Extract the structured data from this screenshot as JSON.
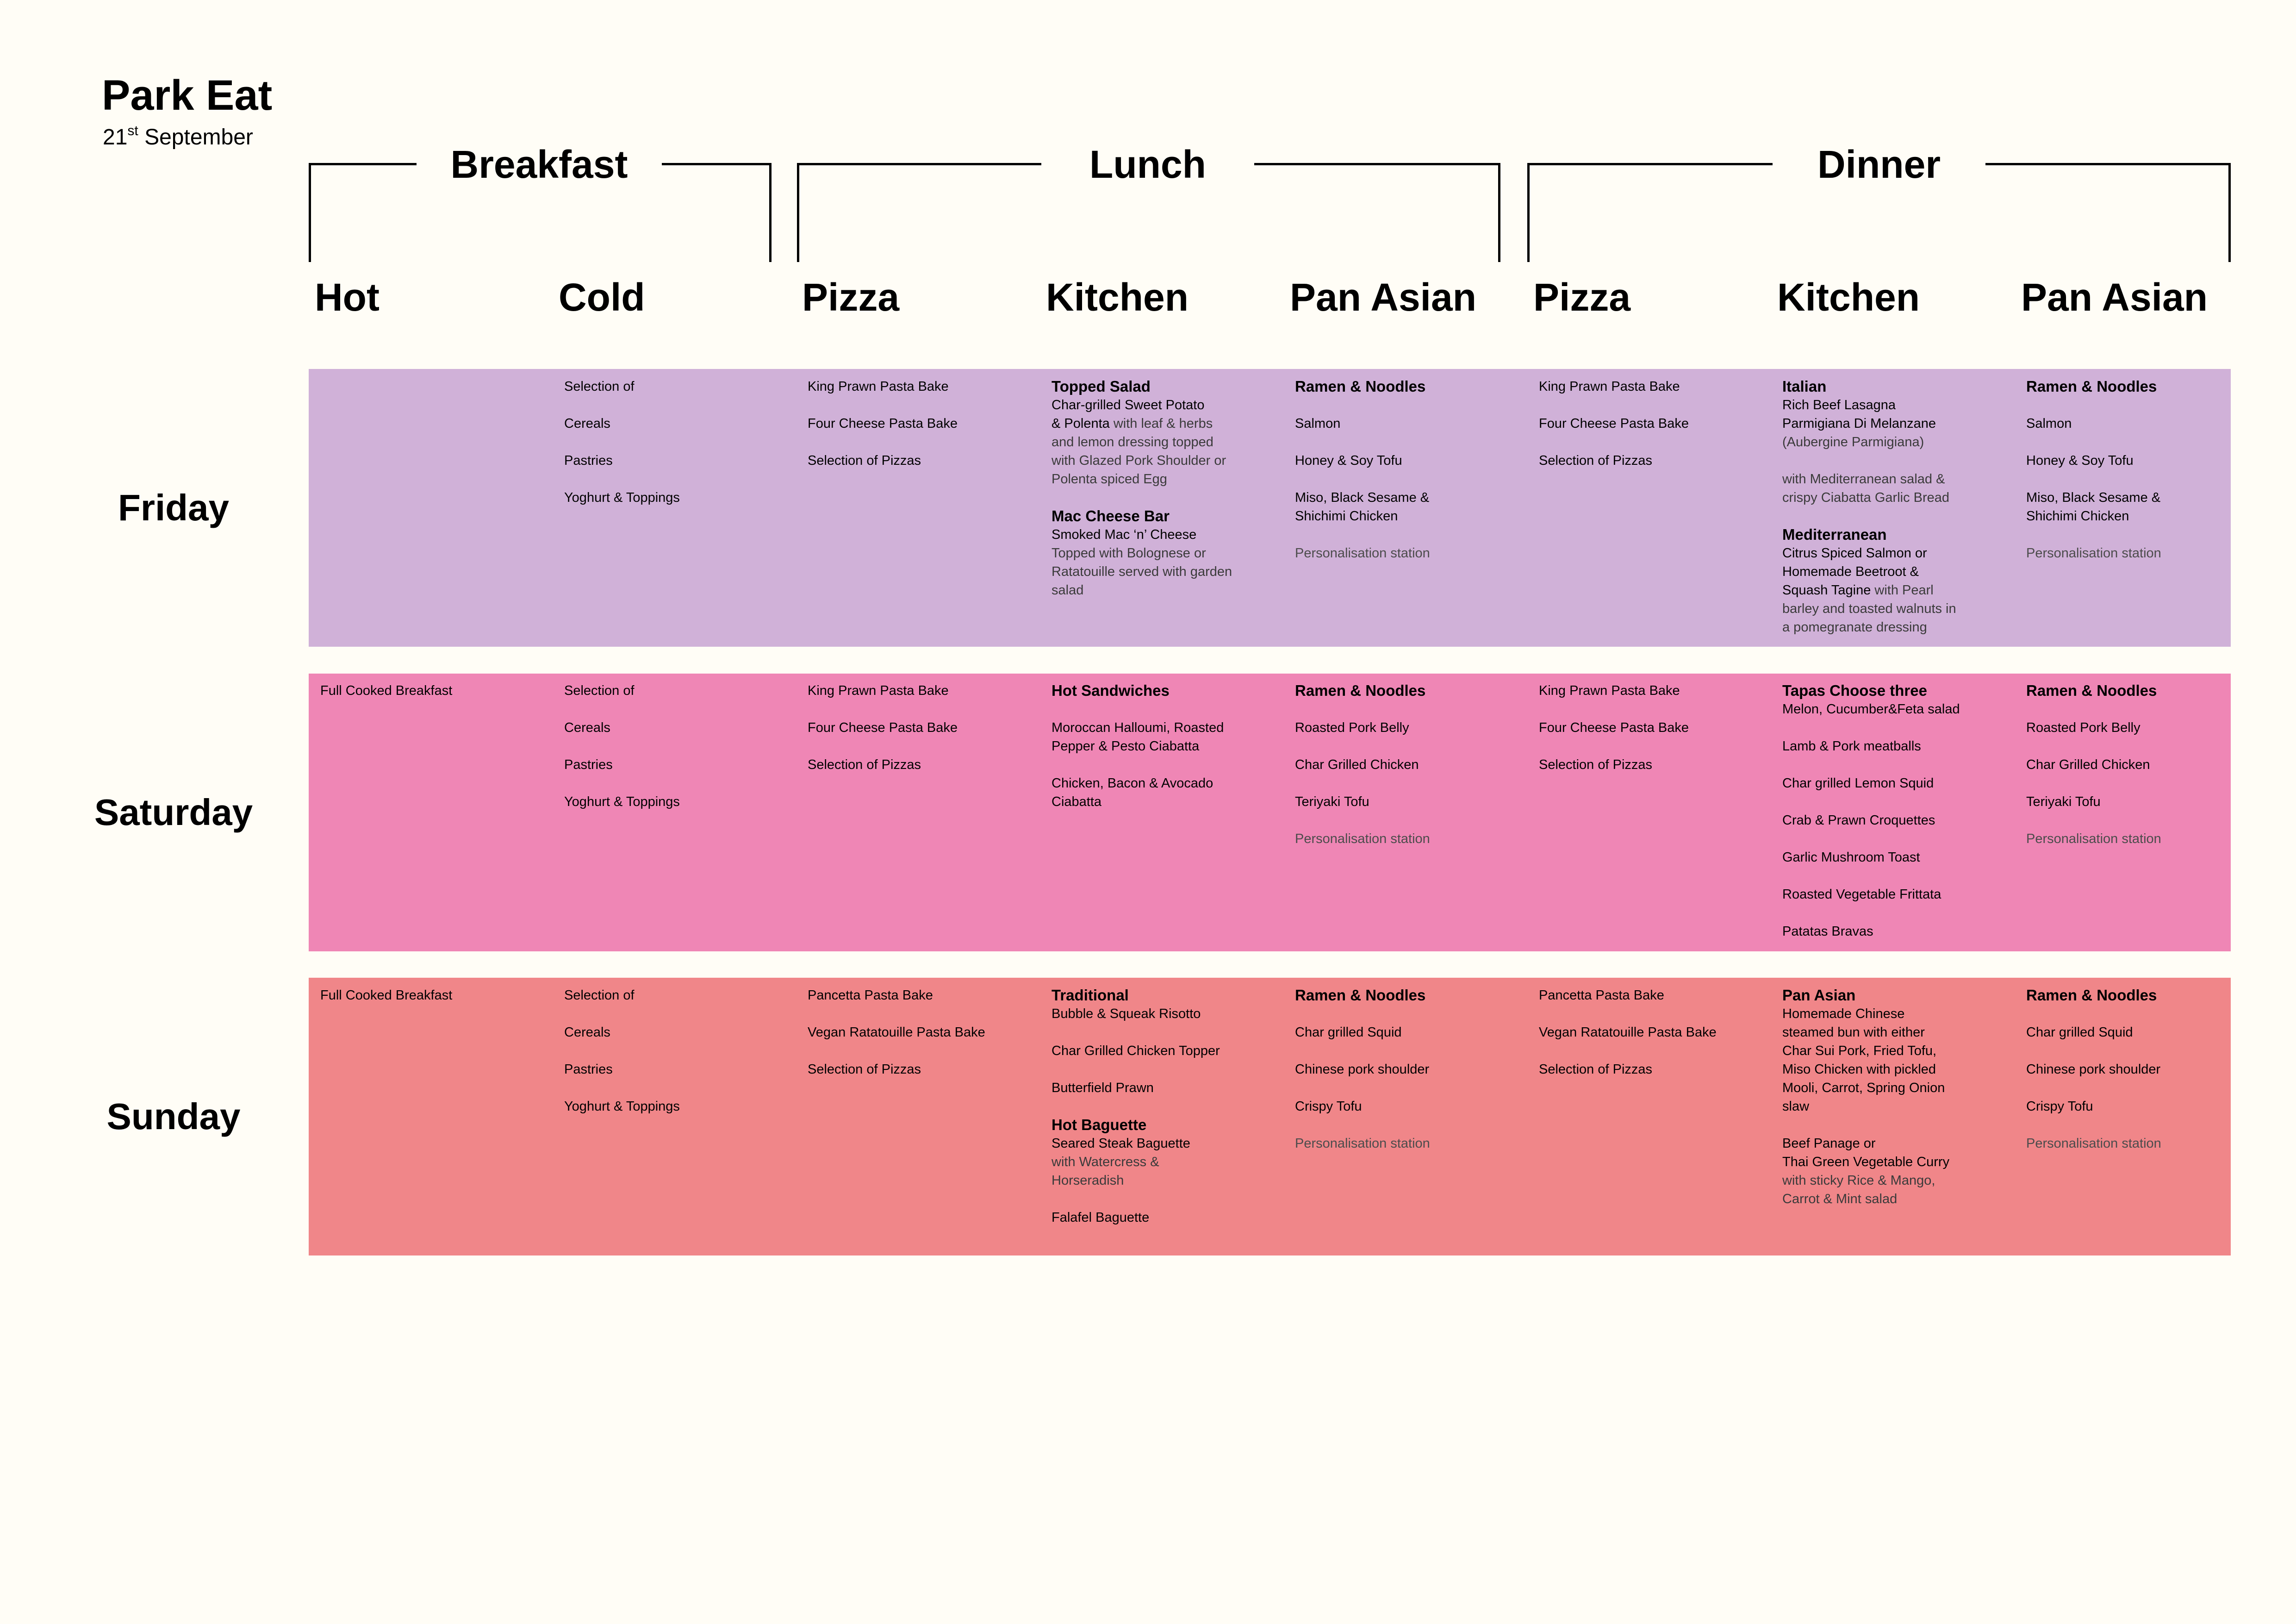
{
  "header": {
    "title": "Park Eat",
    "date_day": "21",
    "date_sup": "st",
    "date_month": "September"
  },
  "meals": [
    {
      "label": "Breakfast"
    },
    {
      "label": "Lunch"
    },
    {
      "label": "Dinner"
    }
  ],
  "columns": [
    "Hot",
    "Cold",
    "Pizza",
    "Kitchen",
    "Pan Asian",
    "Pizza",
    "Kitchen",
    "Pan Asian"
  ],
  "colors": {
    "background": "#fffdf6",
    "friday": "#d0b1d8",
    "saturday": "#ef86b5",
    "sunday": "#f08689"
  },
  "days": [
    {
      "label": "Friday",
      "cells": [
        [],
        [
          {
            "t": "Selection of"
          },
          {
            "t": "Cereals",
            "sp": 1
          },
          {
            "t": "Pastries",
            "sp": 1
          },
          {
            "t": "Yoghurt & Toppings",
            "sp": 1
          }
        ],
        [
          {
            "t": "King Prawn Pasta Bake"
          },
          {
            "t": "Four Cheese Pasta Bake",
            "sp": 1
          },
          {
            "t": "Selection of Pizzas",
            "sp": 1
          }
        ],
        [
          {
            "t": "Topped Salad",
            "s": "b"
          },
          {
            "t": "Char-grilled Sweet Potato"
          },
          {
            "t": "& Polenta",
            "tail": " with leaf & herbs"
          },
          {
            "t": "and lemon dressing topped",
            "s": "d"
          },
          {
            "t": "with Glazed Pork Shoulder or",
            "s": "d"
          },
          {
            "t": "Polenta spiced Egg",
            "s": "d"
          },
          {
            "t": "Mac Cheese Bar",
            "s": "b",
            "sp": 1
          },
          {
            "t": "Smoked Mac ‘n’ Cheese"
          },
          {
            "t": "Topped with Bolognese or",
            "s": "d"
          },
          {
            "t": "Ratatouille served with garden",
            "s": "d"
          },
          {
            "t": "salad",
            "s": "d"
          }
        ],
        [
          {
            "t": "Ramen & Noodles",
            "s": "b"
          },
          {
            "t": "Salmon",
            "sp": 1
          },
          {
            "t": "Honey & Soy Tofu",
            "sp": 1
          },
          {
            "t": "Miso, Black Sesame &",
            "sp": 1
          },
          {
            "t": "Shichimi Chicken"
          },
          {
            "t": "Personalisation station",
            "s": "m",
            "sp": 1
          }
        ],
        [
          {
            "t": "King Prawn Pasta Bake"
          },
          {
            "t": "Four Cheese Pasta Bake",
            "sp": 1
          },
          {
            "t": "Selection of Pizzas",
            "sp": 1
          }
        ],
        [
          {
            "t": "Italian",
            "s": "b"
          },
          {
            "t": "Rich Beef Lasagna"
          },
          {
            "t": "Parmigiana Di  Melanzane"
          },
          {
            "t": "(Aubergine Parmigiana)",
            "s": "d"
          },
          {
            "t": "with Mediterranean salad &",
            "s": "d",
            "sp": 1
          },
          {
            "t": "crispy Ciabatta Garlic Bread",
            "s": "d"
          },
          {
            "t": "Mediterranean",
            "s": "b",
            "sp": 1
          },
          {
            "t": "Citrus Spiced Salmon or"
          },
          {
            "t": "Homemade Beetroot &"
          },
          {
            "t": "Squash Tagine",
            "tail": " with Pearl"
          },
          {
            "t": "barley and toasted walnuts in",
            "s": "d"
          },
          {
            "t": "a pomegranate dressing",
            "s": "d"
          }
        ],
        [
          {
            "t": "Ramen & Noodles",
            "s": "b"
          },
          {
            "t": "Salmon",
            "sp": 1
          },
          {
            "t": "Honey & Soy Tofu",
            "sp": 1
          },
          {
            "t": "Miso, Black Sesame &",
            "sp": 1
          },
          {
            "t": "Shichimi Chicken"
          },
          {
            "t": "Personalisation station",
            "s": "m",
            "sp": 1
          }
        ]
      ]
    },
    {
      "label": "Saturday",
      "cells": [
        [
          {
            "t": "Full Cooked Breakfast"
          }
        ],
        [
          {
            "t": "Selection of"
          },
          {
            "t": "Cereals",
            "sp": 1
          },
          {
            "t": "Pastries",
            "sp": 1
          },
          {
            "t": "Yoghurt & Toppings",
            "sp": 1
          }
        ],
        [
          {
            "t": "King Prawn Pasta Bake"
          },
          {
            "t": "Four Cheese Pasta Bake",
            "sp": 1
          },
          {
            "t": "Selection of Pizzas",
            "sp": 1
          }
        ],
        [
          {
            "t": "Hot Sandwiches",
            "s": "b"
          },
          {
            "t": "Moroccan Halloumi, Roasted",
            "sp": 1
          },
          {
            "t": "Pepper & Pesto Ciabatta"
          },
          {
            "t": "Chicken, Bacon & Avocado",
            "sp": 1
          },
          {
            "t": "Ciabatta"
          }
        ],
        [
          {
            "t": "Ramen & Noodles",
            "s": "b"
          },
          {
            "t": "Roasted Pork Belly",
            "sp": 1
          },
          {
            "t": "Char Grilled Chicken",
            "sp": 1
          },
          {
            "t": "Teriyaki Tofu",
            "sp": 1
          },
          {
            "t": "Personalisation station",
            "s": "m",
            "sp": 1
          }
        ],
        [
          {
            "t": "King Prawn Pasta Bake"
          },
          {
            "t": "Four Cheese Pasta Bake",
            "sp": 1
          },
          {
            "t": "Selection of Pizzas",
            "sp": 1
          }
        ],
        [
          {
            "t": "Tapas Choose three",
            "s": "b"
          },
          {
            "t": "Melon, Cucumber&Feta salad"
          },
          {
            "t": "Lamb & Pork meatballs",
            "sp": 1
          },
          {
            "t": "Char grilled Lemon Squid",
            "sp": 1
          },
          {
            "t": "Crab & Prawn Croquettes",
            "sp": 1
          },
          {
            "t": "Garlic Mushroom Toast",
            "sp": 1
          },
          {
            "t": "Roasted Vegetable Frittata",
            "sp": 1
          },
          {
            "t": "Patatas Bravas",
            "sp": 1
          }
        ],
        [
          {
            "t": "Ramen & Noodles",
            "s": "b"
          },
          {
            "t": "Roasted Pork Belly",
            "sp": 1
          },
          {
            "t": "Char Grilled Chicken",
            "sp": 1
          },
          {
            "t": "Teriyaki Tofu",
            "sp": 1
          },
          {
            "t": "Personalisation station",
            "s": "m",
            "sp": 1
          }
        ]
      ]
    },
    {
      "label": "Sunday",
      "cells": [
        [
          {
            "t": "Full Cooked Breakfast"
          }
        ],
        [
          {
            "t": "Selection of"
          },
          {
            "t": "Cereals",
            "sp": 1
          },
          {
            "t": "Pastries",
            "sp": 1
          },
          {
            "t": "Yoghurt & Toppings",
            "sp": 1
          }
        ],
        [
          {
            "t": "Pancetta Pasta Bake"
          },
          {
            "t": "Vegan Ratatouille Pasta Bake",
            "sp": 1
          },
          {
            "t": "Selection of Pizzas",
            "sp": 1
          }
        ],
        [
          {
            "t": "Traditional",
            "s": "b"
          },
          {
            "t": "Bubble & Squeak Risotto"
          },
          {
            "t": "Char Grilled Chicken Topper",
            "sp": 1
          },
          {
            "t": "Butterfield Prawn",
            "sp": 1
          },
          {
            "t": "Hot Baguette",
            "s": "b",
            "sp": 1
          },
          {
            "t": "Seared Steak Baguette"
          },
          {
            "t": "with Watercress &",
            "s": "d"
          },
          {
            "t": "Horseradish",
            "s": "d"
          },
          {
            "t": "Falafel Baguette",
            "sp": 1
          }
        ],
        [
          {
            "t": "Ramen & Noodles",
            "s": "b"
          },
          {
            "t": "Char grilled Squid",
            "sp": 1
          },
          {
            "t": "Chinese pork shoulder",
            "sp": 1
          },
          {
            "t": "Crispy Tofu",
            "sp": 1
          },
          {
            "t": "Personalisation station",
            "s": "m",
            "sp": 1
          }
        ],
        [
          {
            "t": "Pancetta Pasta Bake"
          },
          {
            "t": "Vegan Ratatouille Pasta Bake",
            "sp": 1
          },
          {
            "t": "Selection of Pizzas",
            "sp": 1
          }
        ],
        [
          {
            "t": "Pan Asian",
            "s": "b"
          },
          {
            "t": "Homemade Chinese"
          },
          {
            "t": "steamed bun with either"
          },
          {
            "t": "Char Sui Pork, Fried Tofu,"
          },
          {
            "t": "Miso Chicken with pickled"
          },
          {
            "t": "Mooli, Carrot, Spring Onion"
          },
          {
            "t": "slaw"
          },
          {
            "t": "Beef Panage or",
            "sp": 1
          },
          {
            "t": "Thai Green Vegetable Curry"
          },
          {
            "t": "with sticky Rice & Mango,",
            "s": "d"
          },
          {
            "t": "Carrot & Mint salad",
            "s": "d"
          }
        ],
        [
          {
            "t": "Ramen & Noodles",
            "s": "b"
          },
          {
            "t": "Char grilled Squid",
            "sp": 1
          },
          {
            "t": "Chinese pork shoulder",
            "sp": 1
          },
          {
            "t": "Crispy Tofu",
            "sp": 1
          },
          {
            "t": "Personalisation station",
            "s": "m",
            "sp": 1
          }
        ]
      ]
    }
  ]
}
